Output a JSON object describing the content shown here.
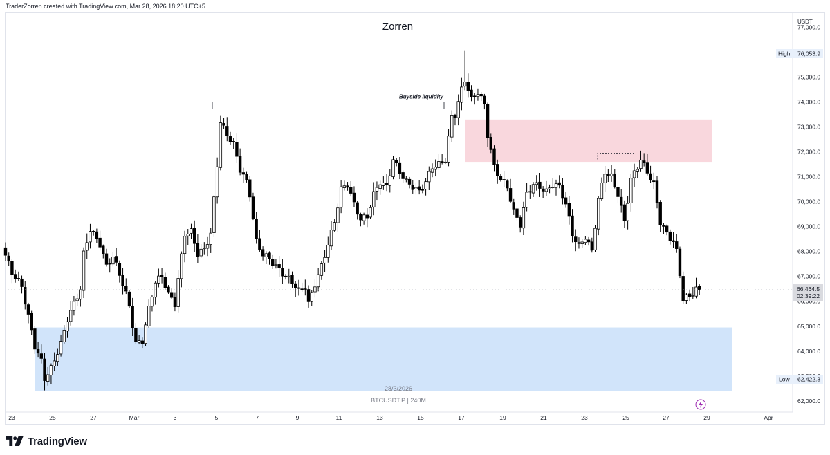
{
  "header": {
    "caption": "TraderZorren created with TradingView.com, Mar 28, 2026 18:20 UTC+5"
  },
  "footer": {
    "brand": "TradingView"
  },
  "chart_data": {
    "type": "candlestick",
    "title": "Zorren",
    "symbol_label": "BTCUSDT.P",
    "interval_label": "240M",
    "date_label": "28/3/2026",
    "currency": "USDT",
    "ylim": [
      61550,
      77600
    ],
    "y_ticks": [
      62000,
      63000,
      64000,
      65000,
      66000,
      67000,
      68000,
      69000,
      70000,
      71000,
      72000,
      73000,
      74000,
      75000,
      76000,
      77000
    ],
    "x_ticks": [
      "23",
      "25",
      "27",
      "Mar",
      "3",
      "5",
      "7",
      "9",
      "11",
      "13",
      "15",
      "17",
      "19",
      "21",
      "23",
      "25",
      "27",
      "29",
      "Apr"
    ],
    "last_price": "66,464.5",
    "countdown": "02:39:22",
    "high_label": "High",
    "high_value": "76,053.9",
    "low_label": "Low",
    "low_value": "62,422.3",
    "high": 76053.9,
    "low": 62422.3,
    "annotations": [
      {
        "type": "horizontal-line",
        "text": "Buyside liquidity",
        "price": 74000
      }
    ],
    "zones": [
      {
        "name": "supply",
        "top": 73300,
        "bottom": 71600,
        "color": "#f9d7dd"
      },
      {
        "name": "demand",
        "top": 64950,
        "bottom": 62400,
        "color": "#d1e4fa"
      }
    ],
    "colors": {
      "up": "#ffffff",
      "down": "#000000",
      "wick": "#000000"
    },
    "anchors": [
      [
        0,
        67850
      ],
      [
        2,
        67150
      ],
      [
        5,
        66600
      ],
      [
        7,
        65400
      ],
      [
        9,
        64200
      ],
      [
        11,
        63600
      ],
      [
        12,
        62900
      ],
      [
        14,
        63300
      ],
      [
        17,
        64300
      ],
      [
        19,
        65300
      ],
      [
        21,
        65900
      ],
      [
        23,
        66500
      ],
      [
        24,
        67900
      ],
      [
        26,
        68900
      ],
      [
        29,
        68300
      ],
      [
        31,
        67400
      ],
      [
        33,
        67800
      ],
      [
        35,
        67100
      ],
      [
        37,
        66300
      ],
      [
        38,
        65800
      ],
      [
        40,
        64300
      ],
      [
        42,
        64400
      ],
      [
        44,
        65700
      ],
      [
        46,
        66800
      ],
      [
        48,
        67000
      ],
      [
        50,
        66300
      ],
      [
        52,
        65900
      ],
      [
        53,
        66900
      ],
      [
        55,
        68700
      ],
      [
        57,
        68800
      ],
      [
        59,
        67900
      ],
      [
        61,
        68100
      ],
      [
        63,
        68700
      ],
      [
        64,
        70100
      ],
      [
        65,
        71500
      ],
      [
        66,
        73200
      ],
      [
        68,
        72700
      ],
      [
        70,
        72300
      ],
      [
        72,
        71300
      ],
      [
        74,
        70800
      ],
      [
        75,
        70300
      ],
      [
        77,
        68400
      ],
      [
        79,
        67900
      ],
      [
        81,
        67700
      ],
      [
        83,
        67400
      ],
      [
        86,
        67000
      ],
      [
        88,
        66800
      ],
      [
        90,
        66400
      ],
      [
        92,
        66600
      ],
      [
        93,
        65900
      ],
      [
        95,
        66700
      ],
      [
        97,
        67400
      ],
      [
        99,
        68300
      ],
      [
        101,
        69200
      ],
      [
        103,
        70500
      ],
      [
        105,
        70700
      ],
      [
        107,
        69900
      ],
      [
        109,
        69300
      ],
      [
        111,
        69400
      ],
      [
        113,
        70300
      ],
      [
        115,
        70800
      ],
      [
        117,
        70600
      ],
      [
        119,
        71700
      ],
      [
        121,
        71200
      ],
      [
        123,
        70800
      ],
      [
        125,
        70600
      ],
      [
        127,
        70400
      ],
      [
        129,
        70800
      ],
      [
        131,
        71400
      ],
      [
        133,
        71500
      ],
      [
        135,
        71700
      ],
      [
        137,
        73400
      ],
      [
        138,
        73500
      ],
      [
        140,
        74500
      ],
      [
        141,
        74900
      ],
      [
        143,
        74100
      ],
      [
        145,
        74400
      ],
      [
        147,
        73900
      ],
      [
        148,
        72700
      ],
      [
        150,
        71400
      ],
      [
        152,
        70900
      ],
      [
        154,
        70600
      ],
      [
        156,
        69600
      ],
      [
        158,
        69100
      ],
      [
        160,
        70300
      ],
      [
        162,
        70700
      ],
      [
        164,
        70600
      ],
      [
        166,
        70400
      ],
      [
        168,
        70700
      ],
      [
        170,
        70600
      ],
      [
        172,
        69900
      ],
      [
        174,
        68700
      ],
      [
        176,
        68200
      ],
      [
        178,
        68600
      ],
      [
        180,
        68000
      ],
      [
        182,
        70100
      ],
      [
        184,
        71200
      ],
      [
        186,
        71000
      ],
      [
        188,
        70300
      ],
      [
        190,
        69200
      ],
      [
        192,
        70900
      ],
      [
        194,
        71400
      ],
      [
        195,
        71700
      ],
      [
        197,
        71200
      ],
      [
        199,
        70700
      ],
      [
        201,
        69200
      ],
      [
        203,
        68700
      ],
      [
        205,
        68400
      ],
      [
        206,
        68000
      ],
      [
        207,
        67100
      ],
      [
        208,
        66100
      ],
      [
        210,
        66200
      ],
      [
        212,
        66500
      ],
      [
        213,
        66464.5
      ]
    ]
  }
}
